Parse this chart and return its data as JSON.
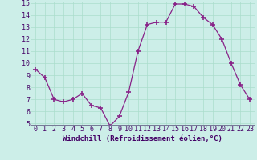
{
  "x": [
    0,
    1,
    2,
    3,
    4,
    5,
    6,
    7,
    8,
    9,
    10,
    11,
    12,
    13,
    14,
    15,
    16,
    17,
    18,
    19,
    20,
    21,
    22,
    23
  ],
  "y": [
    9.5,
    8.8,
    7.0,
    6.8,
    7.0,
    7.5,
    6.5,
    6.3,
    4.8,
    5.6,
    7.6,
    11.0,
    13.2,
    13.4,
    13.4,
    14.9,
    14.9,
    14.7,
    13.8,
    13.2,
    12.0,
    10.0,
    8.2,
    7.0
  ],
  "line_color": "#882288",
  "marker": "+",
  "marker_size": 4,
  "marker_lw": 1.2,
  "bg_color": "#cceee8",
  "grid_color": "#aaddcc",
  "xlabel": "Windchill (Refroidissement éolien,°C)",
  "xlabel_fontsize": 6.5,
  "tick_fontsize": 6.0,
  "ylim": [
    5,
    15
  ],
  "xlim": [
    -0.5,
    23.5
  ],
  "yticks": [
    5,
    6,
    7,
    8,
    9,
    10,
    11,
    12,
    13,
    14,
    15
  ],
  "xticks": [
    0,
    1,
    2,
    3,
    4,
    5,
    6,
    7,
    8,
    9,
    10,
    11,
    12,
    13,
    14,
    15,
    16,
    17,
    18,
    19,
    20,
    21,
    22,
    23
  ],
  "spine_color": "#666688",
  "axis_color": "#440066"
}
